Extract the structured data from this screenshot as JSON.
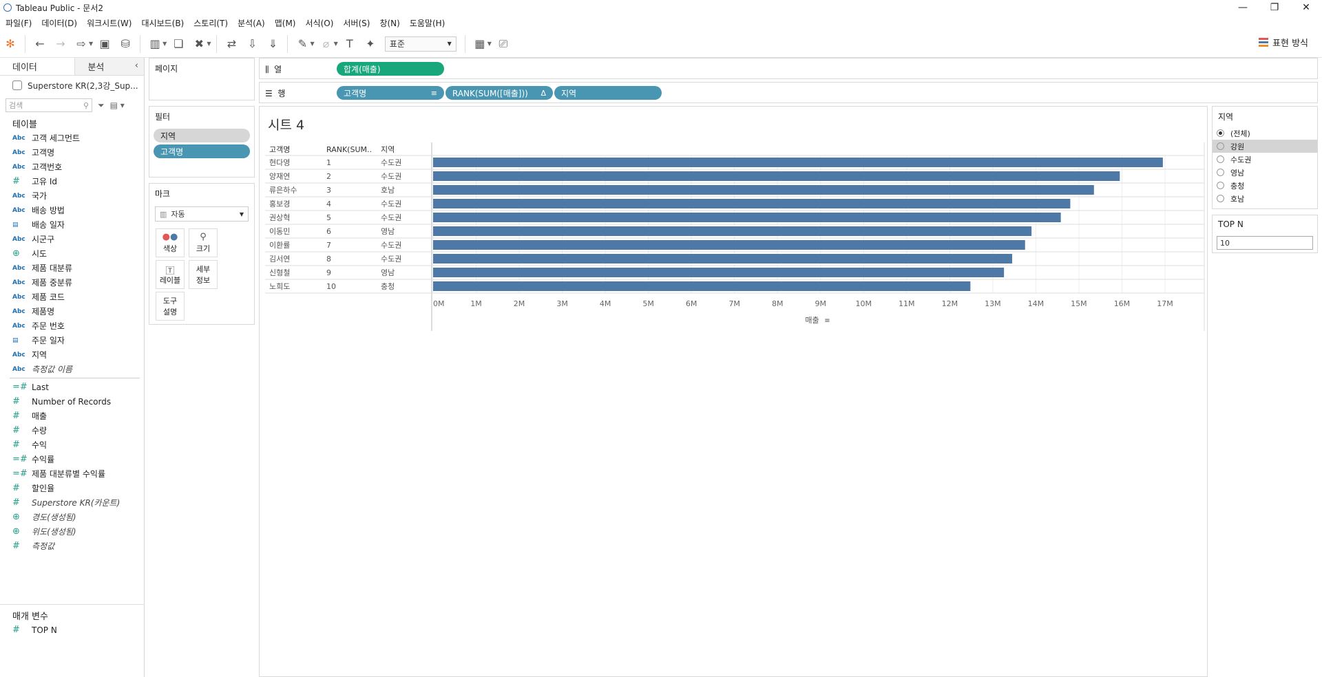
{
  "window": {
    "title": "Tableau Public - 문서2"
  },
  "menu": [
    "파일(F)",
    "데이터(D)",
    "워크시트(W)",
    "대시보드(B)",
    "스토리(T)",
    "분석(A)",
    "맵(M)",
    "서식(O)",
    "서버(S)",
    "창(N)",
    "도움말(H)"
  ],
  "toolbar": {
    "standard_select": "표준",
    "show_me": "표현 방식"
  },
  "datapane": {
    "tab_data": "데이터",
    "tab_analytics": "분석",
    "datasource": "Superstore KR(2,3강_Sup...",
    "search_placeholder": "검색",
    "tables_title": "테이블",
    "dimensions": [
      {
        "type": "Abc",
        "name": "고객 세그먼트"
      },
      {
        "type": "Abc",
        "name": "고객명"
      },
      {
        "type": "Abc",
        "name": "고객번호"
      },
      {
        "type": "#",
        "name": "고유 Id"
      },
      {
        "type": "Abc",
        "name": "국가"
      },
      {
        "type": "Abc",
        "name": "배송 방법"
      },
      {
        "type": "cal",
        "name": "배송 일자"
      },
      {
        "type": "Abc",
        "name": "시군구"
      },
      {
        "type": "geo",
        "name": "시도"
      },
      {
        "type": "Abc",
        "name": "제품 대분류"
      },
      {
        "type": "Abc",
        "name": "제품 중분류"
      },
      {
        "type": "Abc",
        "name": "제품 코드"
      },
      {
        "type": "Abc",
        "name": "제품명"
      },
      {
        "type": "Abc",
        "name": "주문 번호"
      },
      {
        "type": "cal",
        "name": "주문 일자"
      },
      {
        "type": "Abc",
        "name": "지역"
      },
      {
        "type": "Abc",
        "name": "측정값 이름",
        "italic": true
      }
    ],
    "measures": [
      {
        "type": "=#",
        "name": "Last"
      },
      {
        "type": "#",
        "name": "Number of Records"
      },
      {
        "type": "#",
        "name": "매출"
      },
      {
        "type": "#",
        "name": "수량"
      },
      {
        "type": "#",
        "name": "수익"
      },
      {
        "type": "=#",
        "name": "수익률"
      },
      {
        "type": "=#",
        "name": "제품 대분류별 수익률"
      },
      {
        "type": "#",
        "name": "할인율"
      },
      {
        "type": "#",
        "name": "Superstore KR(카운트)",
        "italic": true
      },
      {
        "type": "geo",
        "name": "경도(생성됨)",
        "italic": true
      },
      {
        "type": "geo",
        "name": "위도(생성됨)",
        "italic": true
      },
      {
        "type": "#",
        "name": "측정값",
        "italic": true
      }
    ],
    "params_title": "매개 변수",
    "params": [
      {
        "type": "#",
        "name": "TOP N"
      }
    ]
  },
  "cards": {
    "pages": "페이지",
    "filters": "필터",
    "filter_pills": [
      "지역",
      "고객명"
    ],
    "marks": "마크",
    "marks_type": "자동",
    "mark_buttons": [
      [
        "색상",
        ""
      ],
      [
        "크기",
        ""
      ],
      [
        "레이블",
        ""
      ],
      [
        "세부",
        "정보"
      ],
      [
        "도구",
        "설명"
      ]
    ]
  },
  "shelves": {
    "columns_label": "열",
    "rows_label": "행",
    "columns": [
      "합계(매출)"
    ],
    "rows": [
      "고객명",
      "RANK(SUM([매출]))",
      "지역"
    ],
    "rank_delta": "Δ"
  },
  "sheet": {
    "title": "시트 4"
  },
  "region_filter": {
    "title": "지역",
    "options": [
      "(전체)",
      "강원",
      "수도권",
      "영남",
      "충청",
      "호남"
    ],
    "selected": "(전체)",
    "highlighted": "강원"
  },
  "topn": {
    "title": "TOP N",
    "value": "10"
  },
  "chart_data": {
    "type": "bar",
    "orientation": "horizontal",
    "headers": [
      "고객명",
      "RANK(SUM..",
      "지역"
    ],
    "rows": [
      {
        "name": "현다영",
        "rank": "1",
        "region": "수도권",
        "value": 16950000
      },
      {
        "name": "양재연",
        "rank": "2",
        "region": "수도권",
        "value": 15950000
      },
      {
        "name": "류은하수",
        "rank": "3",
        "region": "호남",
        "value": 15350000
      },
      {
        "name": "홍보경",
        "rank": "4",
        "region": "수도권",
        "value": 14800000
      },
      {
        "name": "권상혁",
        "rank": "5",
        "region": "수도권",
        "value": 14580000
      },
      {
        "name": "이동민",
        "rank": "6",
        "region": "영남",
        "value": 13900000
      },
      {
        "name": "이환률",
        "rank": "7",
        "region": "수도권",
        "value": 13750000
      },
      {
        "name": "김서연",
        "rank": "8",
        "region": "수도권",
        "value": 13450000
      },
      {
        "name": "신형철",
        "rank": "9",
        "region": "영남",
        "value": 13260000
      },
      {
        "name": "노희도",
        "rank": "10",
        "region": "충청",
        "value": 12480000
      }
    ],
    "xlim": [
      0,
      17800000
    ],
    "ticks": [
      0,
      1000000,
      2000000,
      3000000,
      4000000,
      5000000,
      6000000,
      7000000,
      8000000,
      9000000,
      10000000,
      11000000,
      12000000,
      13000000,
      14000000,
      15000000,
      16000000,
      17000000
    ],
    "tick_labels": [
      "0M",
      "1M",
      "2M",
      "3M",
      "4M",
      "5M",
      "6M",
      "7M",
      "8M",
      "9M",
      "10M",
      "11M",
      "12M",
      "13M",
      "14M",
      "15M",
      "16M",
      "17M"
    ],
    "xlabel": "매출",
    "bar_color": "#4e79a7",
    "grid": true
  }
}
